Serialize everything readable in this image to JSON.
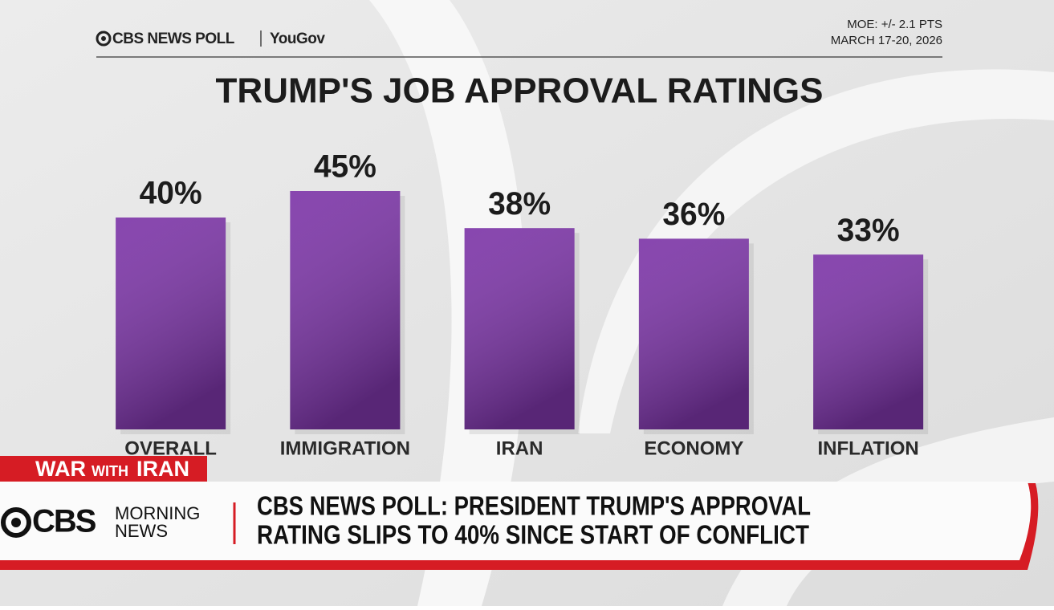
{
  "header": {
    "source": "CBS NEWS POLL",
    "partner": "YouGov",
    "moe": "MOE: +/- 2.1 PTS",
    "dates": "MARCH 17-20, 2026"
  },
  "chart_data": {
    "type": "bar",
    "title": "TRUMP'S JOB APPROVAL RATINGS",
    "categories": [
      "OVERALL",
      "IMMIGRATION",
      "IRAN",
      "ECONOMY",
      "INFLATION"
    ],
    "values": [
      40,
      45,
      38,
      36,
      33
    ],
    "value_labels": [
      "40%",
      "45%",
      "38%",
      "36%",
      "33%"
    ],
    "color": "#7d36a8"
  },
  "lower_third": {
    "tag": [
      "WAR",
      "WITH",
      "IRAN"
    ],
    "network": "CBS",
    "show": [
      "MORNING",
      "NEWS"
    ],
    "headline": [
      "CBS NEWS POLL: PRESIDENT TRUMP'S APPROVAL",
      "RATING SLIPS TO 40% SINCE START OF CONFLICT"
    ]
  }
}
